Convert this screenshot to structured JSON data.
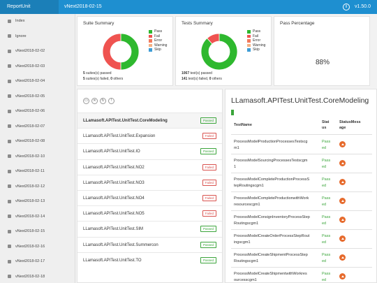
{
  "header": {
    "brand": "ReportUnit",
    "title": "vNext2018-02-15",
    "version": "v1.50.0",
    "info_icon": "info-icon"
  },
  "sidebar": {
    "items": [
      {
        "label": "Index"
      },
      {
        "label": "Ignore"
      },
      {
        "label": "vNext2018-02-02"
      },
      {
        "label": "vNext2018-02-03"
      },
      {
        "label": "vNext2018-02-04"
      },
      {
        "label": "vNext2018-02-05"
      },
      {
        "label": "vNext2018-02-06"
      },
      {
        "label": "vNext2018-02-07"
      },
      {
        "label": "vNext2018-02-08"
      },
      {
        "label": "vNext2018-02-10"
      },
      {
        "label": "vNext2018-02-11"
      },
      {
        "label": "vNext2018-02-12"
      },
      {
        "label": "vNext2018-02-13"
      },
      {
        "label": "vNext2018-02-14"
      },
      {
        "label": "vNext2018-02-15"
      },
      {
        "label": "vNext2018-02-16"
      },
      {
        "label": "vNext2018-02-17"
      },
      {
        "label": "vNext2018-02-18"
      }
    ]
  },
  "colors": {
    "pass": "#2eb82e",
    "fail": "#ef5350",
    "error": "#f37a5b",
    "warning": "#f4b183",
    "skip": "#3d9dd6",
    "accent": "#1e8fd0"
  },
  "legend": {
    "pass": "Pass",
    "fail": "Fail",
    "error": "Error",
    "warning": "Warning",
    "skip": "Skip"
  },
  "suite_summary": {
    "title": "Suite Summary",
    "passed_count": "5",
    "passed_text": " suites(s) passed",
    "failed_count": "5",
    "failed_text": " suites(s) failed, ",
    "others_count": "0",
    "others_text": " others"
  },
  "tests_summary": {
    "title": "Tests Summary",
    "passed_count": "1067",
    "passed_text": " test(s) passed",
    "failed_count": "141",
    "failed_text": " test(s) failed, ",
    "others_count": "0",
    "others_text": " others"
  },
  "pass_percentage": {
    "title": "Pass Percentage",
    "value": "88%",
    "fraction": 0.88
  },
  "chart_data": [
    {
      "type": "pie",
      "categories": [
        "Pass",
        "Fail",
        "Error",
        "Warning",
        "Skip"
      ],
      "values": [
        5,
        5,
        0,
        0,
        0
      ]
    },
    {
      "type": "pie",
      "categories": [
        "Pass",
        "Fail",
        "Error",
        "Warning",
        "Skip"
      ],
      "values": [
        1067,
        141,
        0,
        0,
        0
      ]
    }
  ],
  "filters": [
    {
      "icon": "folder-icon",
      "glyph": "▭"
    },
    {
      "icon": "clear-icon",
      "glyph": "✕"
    },
    {
      "icon": "refresh-icon",
      "glyph": "↻"
    },
    {
      "icon": "warning-icon",
      "glyph": "!"
    }
  ],
  "tests": [
    {
      "name": "LLamasoft.APITest.UnitTest.CoreModeling",
      "status": "Passed",
      "active": true
    },
    {
      "name": "LLamasoft.APITest.UnitTest.Expansion",
      "status": "Failed"
    },
    {
      "name": "LLamasoft.APITest.UnitTest.IO",
      "status": "Passed"
    },
    {
      "name": "LLamasoft.APITest.UnitTest.NO2",
      "status": "Failed"
    },
    {
      "name": "LLamasoft.APITest.UnitTest.NO3",
      "status": "Failed"
    },
    {
      "name": "LLamasoft.APITest.UnitTest.NO4",
      "status": "Failed"
    },
    {
      "name": "LLamasoft.APITest.UnitTest.NO5",
      "status": "Failed"
    },
    {
      "name": "LLamasoft.APITest.UnitTest.SIM",
      "status": "Passed"
    },
    {
      "name": "LLamasoft.APITest.UnitTest.Summercon",
      "status": "Passed"
    },
    {
      "name": "LLamasoft.APITest.UnitTest.TO",
      "status": "Passed"
    }
  ],
  "detail": {
    "title": "LLamasoft.APITest.UnitTest.CoreModeling",
    "headers": {
      "name": "TestName",
      "status_line1": "Stat",
      "status_line2": "us",
      "message_line1": "StatusMess",
      "message_line2": "age"
    },
    "steps": [
      {
        "line1": "ProcessModelProductionProcessesTestscg",
        "line2": "m1",
        "status_line1": "Pass",
        "status_line2": "ed"
      },
      {
        "line1": "ProcessModelSourcingProcessesTestscgm",
        "line2": "1",
        "status_line1": "Pass",
        "status_line2": "ed"
      },
      {
        "line1": "ProcessModelCompleteProductionProcessS",
        "line2": "tepRoutingscgm1",
        "status_line1": "Pass",
        "status_line2": "ed"
      },
      {
        "line1": "ProcessModelCompleteProductionwithWork",
        "line2": "resourcescgm1",
        "status_line1": "Pass",
        "status_line2": "ed"
      },
      {
        "line1": "ProcessModelConsignInventoryProcessStep",
        "line2": "Routingscgm1",
        "status_line1": "Pass",
        "status_line2": "ed"
      },
      {
        "line1": "ProcessModelCreateOrderProcessStepRout",
        "line2": "ingscgm1",
        "status_line1": "Pass",
        "status_line2": "ed"
      },
      {
        "line1": "ProcessModelCreateShipmentProcessStep",
        "line2": "Routingscgm1",
        "status_line1": "Pass",
        "status_line2": "ed"
      },
      {
        "line1": "ProcessModelCreateShipmentwithWorkres",
        "line2": "ourcesscgm1",
        "status_line1": "Pass",
        "status_line2": "ed"
      }
    ]
  }
}
